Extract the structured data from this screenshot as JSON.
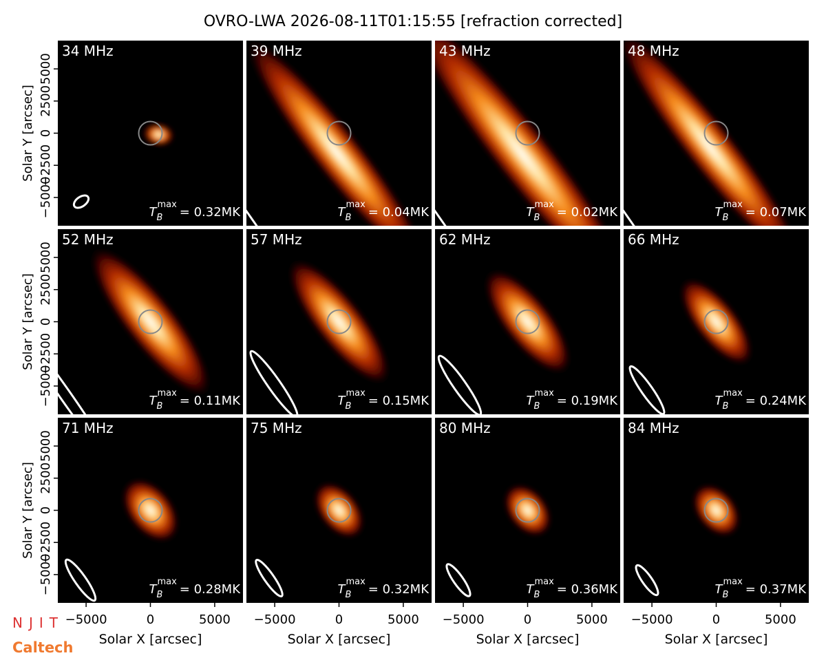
{
  "chart_data": {
    "type": "image-grid",
    "title": "OVRO-LWA 2026-08-11T01:15:55 [refraction corrected]",
    "xlabel": "Solar X [arcsec]",
    "ylabel": "Solar Y [arcsec]",
    "xlim": [
      -7200,
      7200
    ],
    "ylim": [
      -7200,
      7200
    ],
    "xticks": [
      {
        "value": -5000,
        "label": "−5000"
      },
      0,
      5000
    ],
    "yticks": [
      {
        "value": -5000,
        "label": "−5000"
      },
      {
        "value": -2500,
        "label": "−2500"
      },
      0,
      2500,
      5000
    ],
    "tb_symbol": "T",
    "tb_sub": "B",
    "tb_sup": "max",
    "panels": [
      {
        "freq": "34 MHz",
        "tmax": "= 0.32MK"
      },
      {
        "freq": "39 MHz",
        "tmax": "= 0.04MK"
      },
      {
        "freq": "43 MHz",
        "tmax": "= 0.02MK"
      },
      {
        "freq": "48 MHz",
        "tmax": "= 0.07MK"
      },
      {
        "freq": "52 MHz",
        "tmax": "= 0.11MK"
      },
      {
        "freq": "57 MHz",
        "tmax": "= 0.15MK"
      },
      {
        "freq": "62 MHz",
        "tmax": "= 0.19MK"
      },
      {
        "freq": "66 MHz",
        "tmax": "= 0.24MK"
      },
      {
        "freq": "71 MHz",
        "tmax": "= 0.28MK"
      },
      {
        "freq": "75 MHz",
        "tmax": "= 0.32MK"
      },
      {
        "freq": "80 MHz",
        "tmax": "= 0.36MK"
      },
      {
        "freq": "84 MHz",
        "tmax": "= 0.37MK"
      }
    ],
    "logos": [
      "NJIT",
      "Caltech"
    ]
  }
}
